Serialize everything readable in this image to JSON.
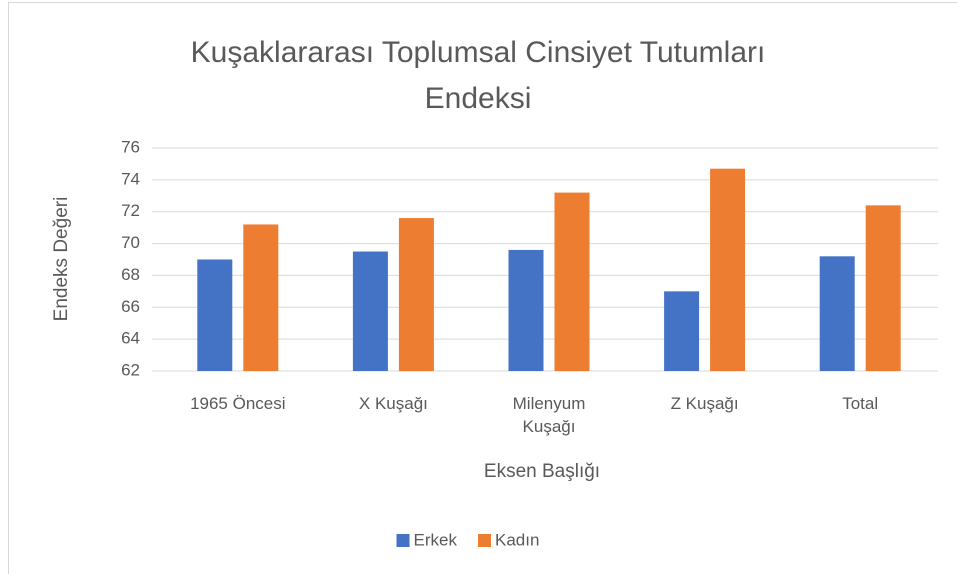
{
  "chart_data": {
    "type": "bar",
    "title": "Kuşaklararası Toplumsal Cinsiyet Tutumları Endeksi",
    "x_label": "Eksen Başlığı",
    "y_label": "Endeks Değeri",
    "categories": [
      "1965 Öncesi",
      "X Kuşağı",
      "Milenyum Kuşağı",
      "Z Kuşağı",
      "Total"
    ],
    "series": [
      {
        "name": "Erkek",
        "color": "#4472c4",
        "values": [
          69.0,
          69.5,
          69.6,
          67.0,
          69.2
        ]
      },
      {
        "name": "Kadın",
        "color": "#ed7d31",
        "values": [
          71.2,
          71.6,
          73.2,
          74.7,
          72.4
        ]
      }
    ],
    "ylim": [
      62,
      76
    ],
    "yticks": [
      62,
      64,
      66,
      68,
      70,
      72,
      74,
      76
    ],
    "grid": true,
    "legend": "bottom"
  }
}
